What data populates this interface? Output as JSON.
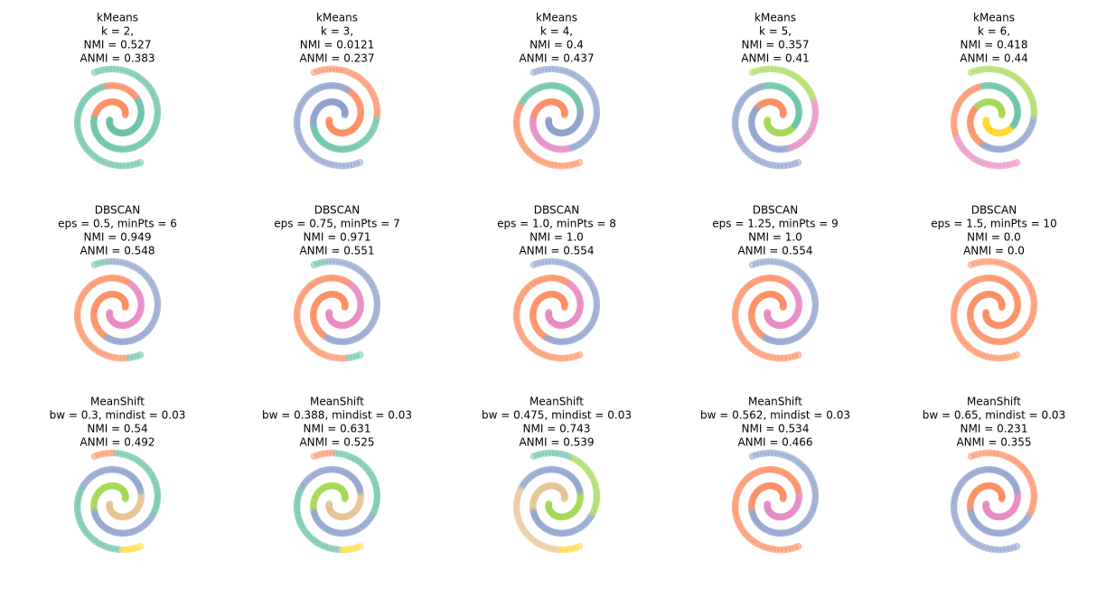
{
  "panels": [
    {
      "lines": [
        "kMeans",
        "k = 2,",
        "NMI = 0.527",
        "ANMI = 0.383"
      ]
    },
    {
      "lines": [
        "kMeans",
        "k = 3,",
        "NMI = 0.0121",
        "ANMI = 0.237"
      ]
    },
    {
      "lines": [
        "kMeans",
        "k = 4,",
        "NMI = 0.4",
        "ANMI = 0.437"
      ]
    },
    {
      "lines": [
        "kMeans",
        "k = 5,",
        "NMI = 0.357",
        "ANMI = 0.41"
      ]
    },
    {
      "lines": [
        "kMeans",
        "k = 6,",
        "NMI = 0.418",
        "ANMI = 0.44"
      ]
    },
    {
      "lines": [
        "DBSCAN",
        "eps = 0.5, minPts = 6",
        "NMI = 0.949",
        "ANMI = 0.548"
      ]
    },
    {
      "lines": [
        "DBSCAN",
        "eps = 0.75, minPts = 7",
        "NMI = 0.971",
        "ANMI = 0.551"
      ]
    },
    {
      "lines": [
        "DBSCAN",
        "eps = 1.0, minPts = 8",
        "NMI = 1.0",
        "ANMI = 0.554"
      ]
    },
    {
      "lines": [
        "DBSCAN",
        "eps = 1.25, minPts = 9",
        "NMI = 1.0",
        "ANMI = 0.554"
      ]
    },
    {
      "lines": [
        "DBSCAN",
        "eps = 1.5, minPts = 10",
        "NMI = 0.0",
        "ANMI = 0.0"
      ]
    },
    {
      "lines": [
        "MeanShift",
        "bw = 0.3, mindist = 0.03",
        "NMI = 0.54",
        "ANMI = 0.492"
      ]
    },
    {
      "lines": [
        "MeanShift",
        "bw = 0.388, mindist = 0.03",
        "NMI = 0.631",
        "ANMI = 0.525"
      ]
    },
    {
      "lines": [
        "MeanShift",
        "bw = 0.475, mindist = 0.03",
        "NMI = 0.743",
        "ANMI = 0.539"
      ]
    },
    {
      "lines": [
        "MeanShift",
        "bw = 0.562, mindist = 0.03",
        "NMI = 0.534",
        "ANMI = 0.466"
      ]
    },
    {
      "lines": [
        "MeanShift",
        "bw = 0.65, mindist = 0.03",
        "NMI = 0.231",
        "ANMI = 0.355"
      ]
    }
  ]
}
